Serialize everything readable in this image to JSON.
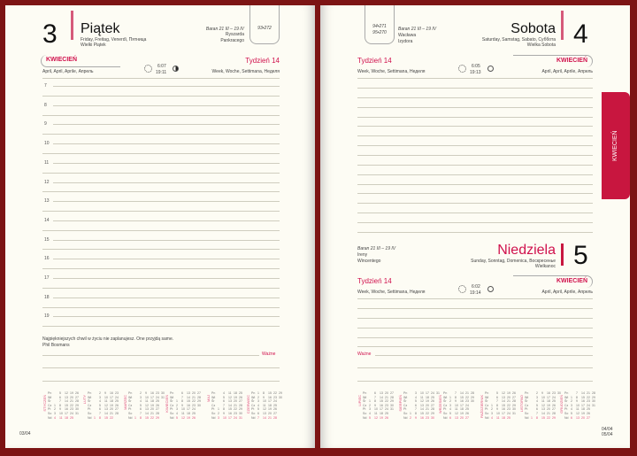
{
  "left": {
    "day_number": "3",
    "day_name": "Piątek",
    "translations": "Friday, Freitag, Venerdì, Пятница",
    "holiday": "Wielki Piątek",
    "zodiac": "Baran 21 III – 19 IV",
    "namedays": [
      "Ryszarda",
      "Pankracego"
    ],
    "day_count": "93•272",
    "month": "KWIECIEŃ",
    "month_translations": "April, April, Aprile, Апрель",
    "sunrise": "6:07",
    "sunset": "19:11",
    "week": "Tydzień 14",
    "week_translations": "Week, Woche, Settimana, Неделя",
    "hours": [
      "7",
      "8",
      "9",
      "10",
      "11",
      "12",
      "13",
      "14",
      "15",
      "16",
      "17",
      "18",
      "19"
    ],
    "quote": "Najpiękniejszych chwil w życiu nie zaplanujesz. One przyjdą same.",
    "quote_author": "Phil Bosmans",
    "important": "Ważne",
    "page_number": "03/04"
  },
  "right": {
    "sat": {
      "day_number": "4",
      "day_name": "Sobota",
      "translations": "Saturday, Samstag, Sabato, Суббота",
      "holiday": "Wielka Sobota",
      "zodiac": "Baran 21 III – 19 IV",
      "namedays": [
        "Wacława",
        "Izydora"
      ],
      "day_count": "94•271",
      "day_count2": "95•270",
      "month": "KWIECIEŃ",
      "month_translations": "April, April, Aprile, Апрель",
      "sunrise": "6:05",
      "sunset": "19:13",
      "week": "Tydzień 14",
      "week_translations": "Week, Woche, Settimana, Неделя"
    },
    "sun": {
      "day_number": "5",
      "day_name": "Niedziela",
      "translations": "Sunday, Sonntag, Domenica, Воскресенье",
      "holiday": "Wielkanoc",
      "zodiac": "Baran 21 III – 19 IV",
      "namedays": [
        "Ireny",
        "Wincentego"
      ],
      "month": "KWIECIEŃ",
      "month_translations": "April, April, Aprile, Апрель",
      "sunrise": "6:02",
      "sunset": "19:14",
      "week": "Tydzień 14",
      "week_translations": "Week, Woche, Settimana, Неделя"
    },
    "important": "Ważne",
    "page_numbers": [
      "04/04",
      "05/04"
    ]
  },
  "bookmark_tab": "KWIECIEŃ",
  "calendar": {
    "year": 2015,
    "weekdays": [
      "Pn",
      "Wt",
      "Śr",
      "Cz",
      "Pt",
      "So",
      "Nd"
    ],
    "left_months": [
      "STYCZEŃ",
      "LUTY",
      "MARZEC",
      "KWIECIEŃ",
      "MAJ",
      "CZERWIEC"
    ],
    "right_months": [
      "LIPIEC",
      "SIERPIEŃ",
      "WRZESIEŃ",
      "PAŹDZIERNIK",
      "LISTOPAD",
      "GRUDZIEŃ"
    ]
  },
  "colors": {
    "accent": "#d0104c",
    "frame": "#7c1414",
    "paper": "#fdfcf4",
    "tab": "#c8163f"
  }
}
